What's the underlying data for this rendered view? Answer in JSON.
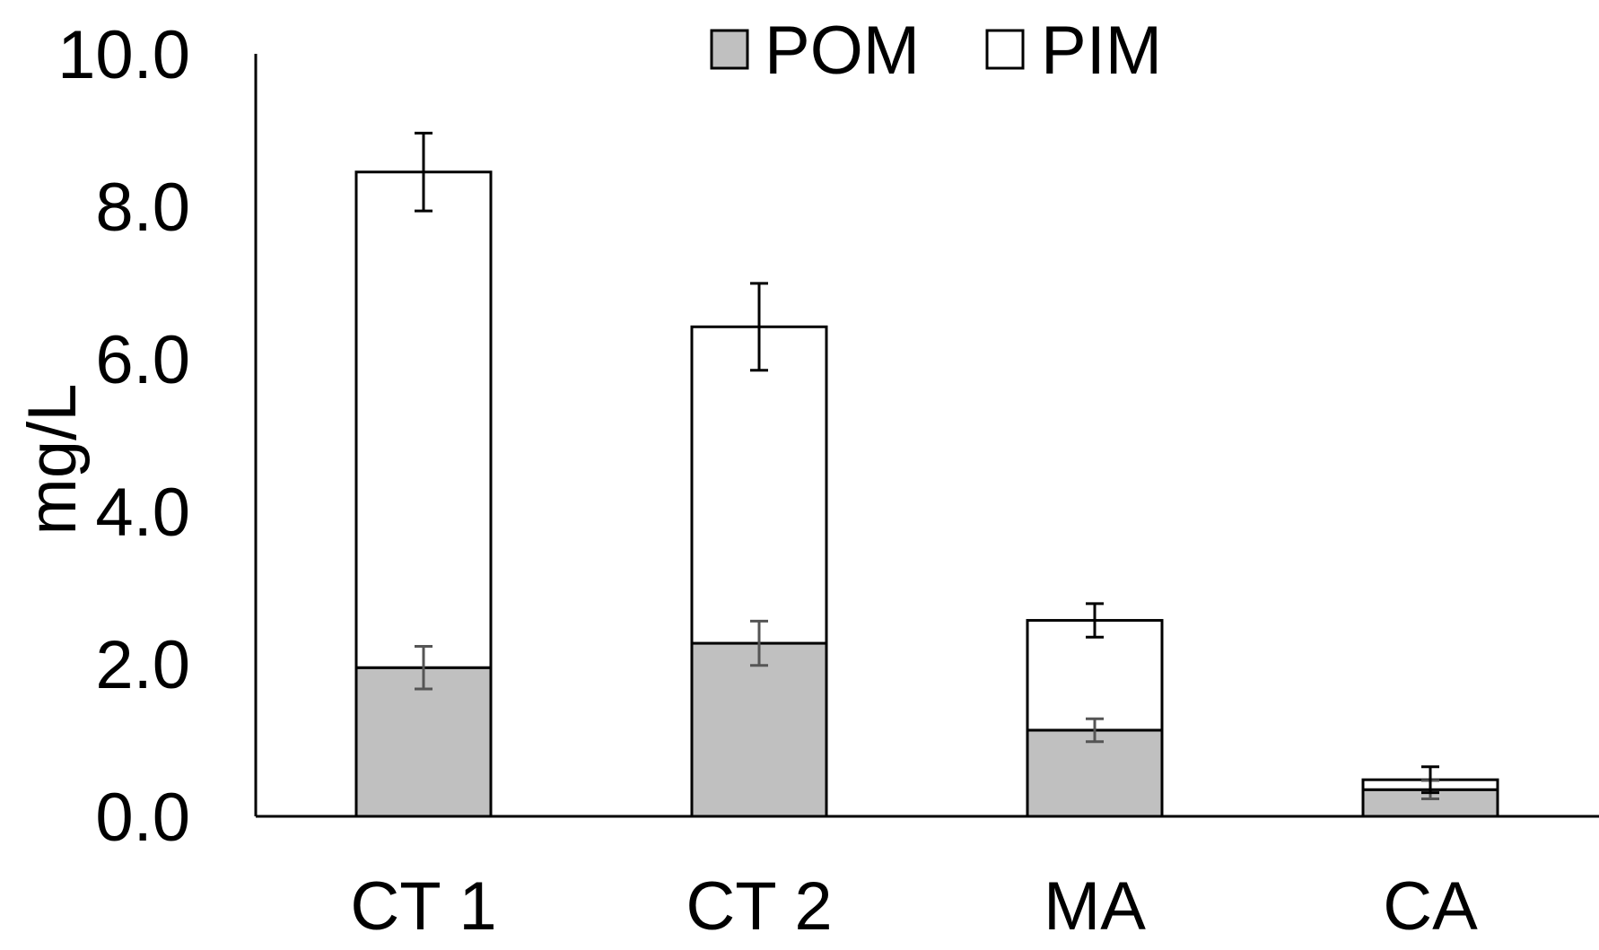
{
  "chart_data": {
    "type": "bar",
    "stacked": true,
    "title": "",
    "xlabel": "",
    "ylabel": "mg/L",
    "ylim": [
      0,
      10
    ],
    "y_ticks": [
      "0.0",
      "2.0",
      "4.0",
      "6.0",
      "8.0",
      "10.0"
    ],
    "y_tick_values": [
      0,
      2,
      4,
      6,
      8,
      10
    ],
    "categories": [
      "CT 1",
      "CT 2",
      "MA",
      "CA"
    ],
    "legend_position": "top-center",
    "series": [
      {
        "name": "POM",
        "color": "#c0c0c0",
        "values": [
          1.95,
          2.27,
          1.13,
          0.35
        ],
        "error": [
          0.28,
          0.29,
          0.15,
          0.12
        ],
        "error_color": "#555555"
      },
      {
        "name": "PIM",
        "color": "#ffffff",
        "values": [
          6.5,
          4.15,
          1.44,
          0.13
        ],
        "error": [
          0.51,
          0.57,
          0.22,
          0.17
        ],
        "error_color": "#000000"
      }
    ]
  }
}
